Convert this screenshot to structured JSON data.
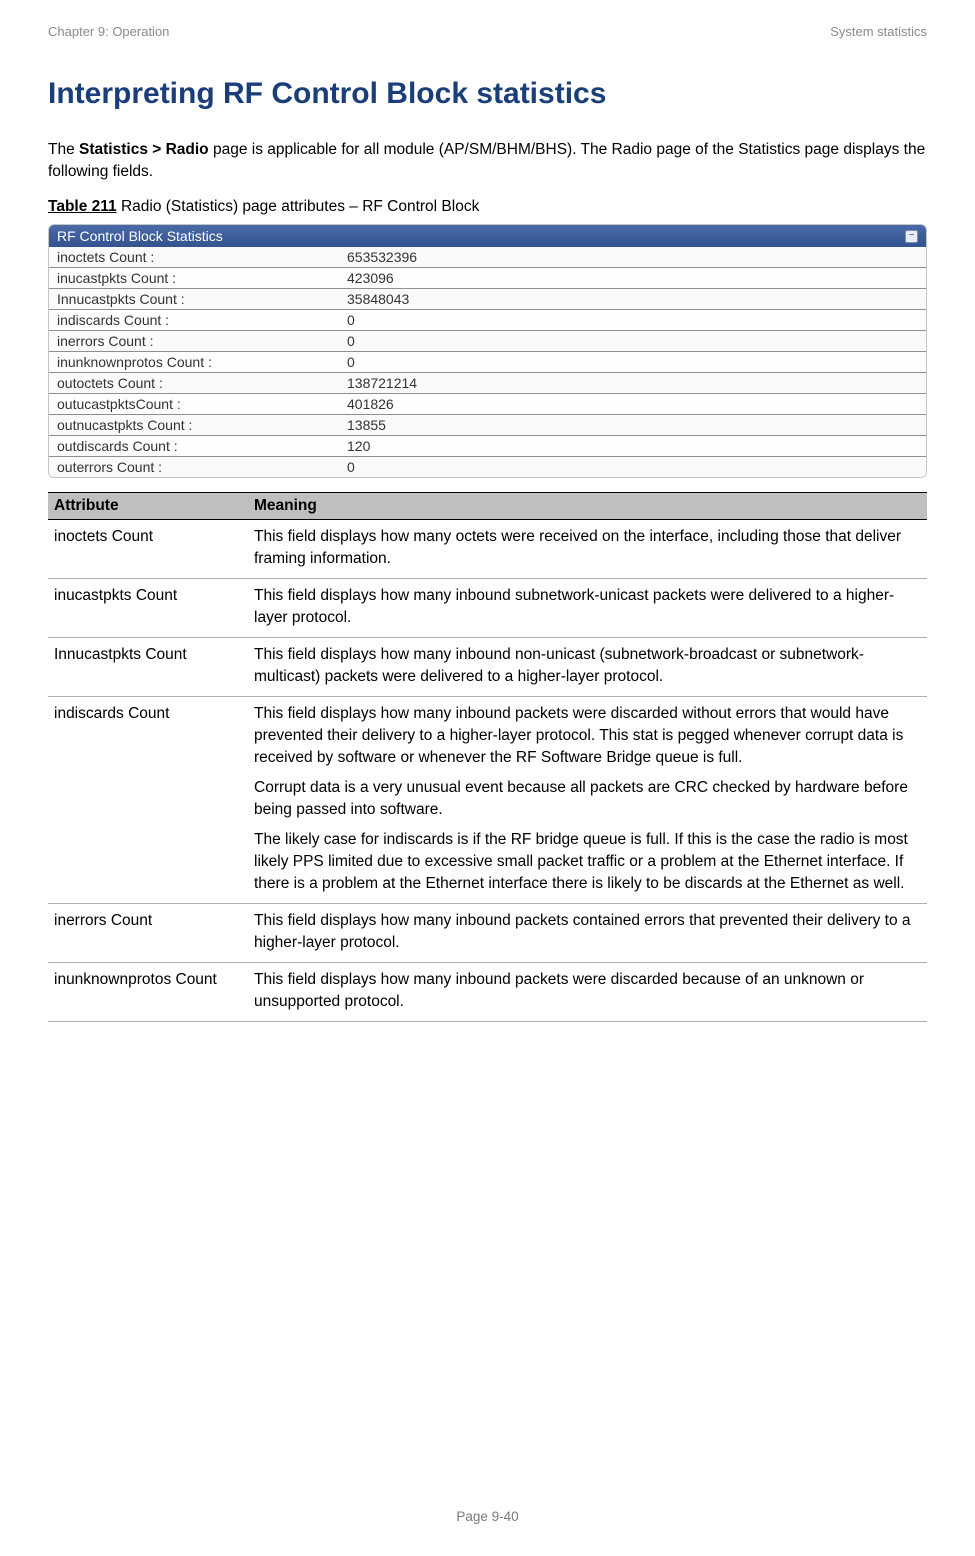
{
  "header": {
    "left": "Chapter 9:  Operation",
    "right": "System statistics"
  },
  "title": "Interpreting RF Control Block statistics",
  "intro_prefix": "The ",
  "intro_bold": "Statistics > Radio",
  "intro_suffix": " page is applicable for all module (AP/SM/BHM/BHS). The Radio page of the Statistics page displays the following fields.",
  "table_caption_bold": "Table 211",
  "table_caption_rest": " Radio (Statistics) page attributes – RF Control Block",
  "stats_panel": {
    "title": "RF Control Block Statistics",
    "header_bg_top": "#4a6aa8",
    "header_bg_bottom": "#33548f",
    "rows": [
      {
        "label": "inoctets Count :",
        "value": "653532396"
      },
      {
        "label": "inucastpkts Count :",
        "value": "423096"
      },
      {
        "label": "Innucastpkts Count :",
        "value": "35848043"
      },
      {
        "label": "indiscards Count :",
        "value": "0"
      },
      {
        "label": "inerrors Count :",
        "value": "0"
      },
      {
        "label": "inunknownprotos Count :",
        "value": "0"
      },
      {
        "label": "outoctets Count :",
        "value": "138721214"
      },
      {
        "label": "outucastpktsCount :",
        "value": "401826"
      },
      {
        "label": "outnucastpkts Count :",
        "value": "13855"
      },
      {
        "label": "outdiscards Count :",
        "value": "120"
      },
      {
        "label": "outerrors Count :",
        "value": "0"
      }
    ]
  },
  "attr_table": {
    "col1_header": "Attribute",
    "col2_header": "Meaning",
    "rows": [
      {
        "attr": "inoctets Count",
        "meaning": [
          "This field displays how many octets were received on the interface, including those that deliver framing information."
        ]
      },
      {
        "attr": "inucastpkts Count",
        "meaning": [
          "This field displays how many inbound subnetwork-unicast packets were delivered to a higher-layer protocol."
        ]
      },
      {
        "attr": "Innucastpkts Count",
        "meaning": [
          "This field displays how many inbound non-unicast (subnetwork-broadcast or subnetwork-multicast) packets were delivered to a higher-layer protocol."
        ]
      },
      {
        "attr": "indiscards Count",
        "meaning": [
          "This field displays how many inbound packets were discarded without errors that would have prevented their delivery to a higher-layer protocol. This stat is pegged whenever corrupt data is received by software or whenever the RF Software Bridge queue is full.",
          "Corrupt data is a very unusual event because all packets are CRC checked by hardware before being passed into software.",
          "The likely case for indiscards is if the RF bridge queue is full. If this is the case the radio is most likely PPS limited due to excessive small packet traffic or a problem at the Ethernet interface. If there is a problem at the Ethernet interface there is likely to be discards at the Ethernet as well."
        ]
      },
      {
        "attr": "inerrors Count",
        "meaning": [
          "This field displays how many inbound packets contained errors that prevented their delivery to a higher-layer protocol."
        ]
      },
      {
        "attr": "inunknownprotos Count",
        "meaning": [
          "This field displays how many inbound packets were discarded because of an unknown or unsupported protocol."
        ]
      }
    ]
  },
  "footer": "Page 9-40"
}
